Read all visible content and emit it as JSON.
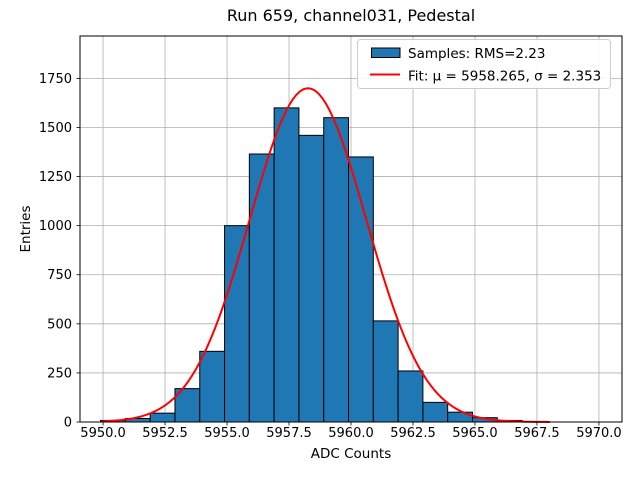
{
  "chart_data": {
    "type": "bar",
    "subtype": "histogram",
    "title": "Run 659, channel031, Pedestal",
    "xlabel": "ADC Counts",
    "ylabel": "Entries",
    "xlim": [
      5949.07,
      5970.93
    ],
    "ylim": [
      0,
      1966
    ],
    "xticks": [
      5950.0,
      5952.5,
      5955.0,
      5957.5,
      5960.0,
      5962.5,
      5965.0,
      5967.5,
      5970.0
    ],
    "xtick_labels": [
      "5950.0",
      "5952.5",
      "5955.0",
      "5957.5",
      "5960.0",
      "5962.5",
      "5965.0",
      "5967.5",
      "5970.0"
    ],
    "yticks": [
      0,
      250,
      500,
      750,
      1000,
      1250,
      1500,
      1750
    ],
    "ytick_labels": [
      "0",
      "250",
      "500",
      "750",
      "1000",
      "1250",
      "1500",
      "1750"
    ],
    "grid": true,
    "grid_color": "#b0b0b0",
    "bin_edges": [
      5949.9,
      5950.9,
      5951.9,
      5952.9,
      5953.9,
      5954.9,
      5955.9,
      5956.9,
      5957.9,
      5958.9,
      5959.9,
      5960.9,
      5961.9,
      5962.9,
      5963.9,
      5964.9,
      5965.9,
      5966.9
    ],
    "values": [
      8,
      18,
      45,
      170,
      360,
      1000,
      1365,
      1600,
      1460,
      1550,
      1350,
      515,
      260,
      100,
      50,
      22,
      8
    ],
    "bar_color": "#1f77b4",
    "bar_edge_color": "#000000",
    "samples_rms": 2.23,
    "fit": {
      "type": "gaussian",
      "mu": 5958.265,
      "sigma": 2.353,
      "amplitude": 1700,
      "x_range": [
        5950,
        5968
      ],
      "color": "#ff0000"
    },
    "legend_position": "upper right",
    "legend": [
      {
        "marker": "patch",
        "label": "Samples: RMS=2.23"
      },
      {
        "marker": "line",
        "label": "Fit: μ = 5958.265, σ = 2.353"
      }
    ]
  }
}
